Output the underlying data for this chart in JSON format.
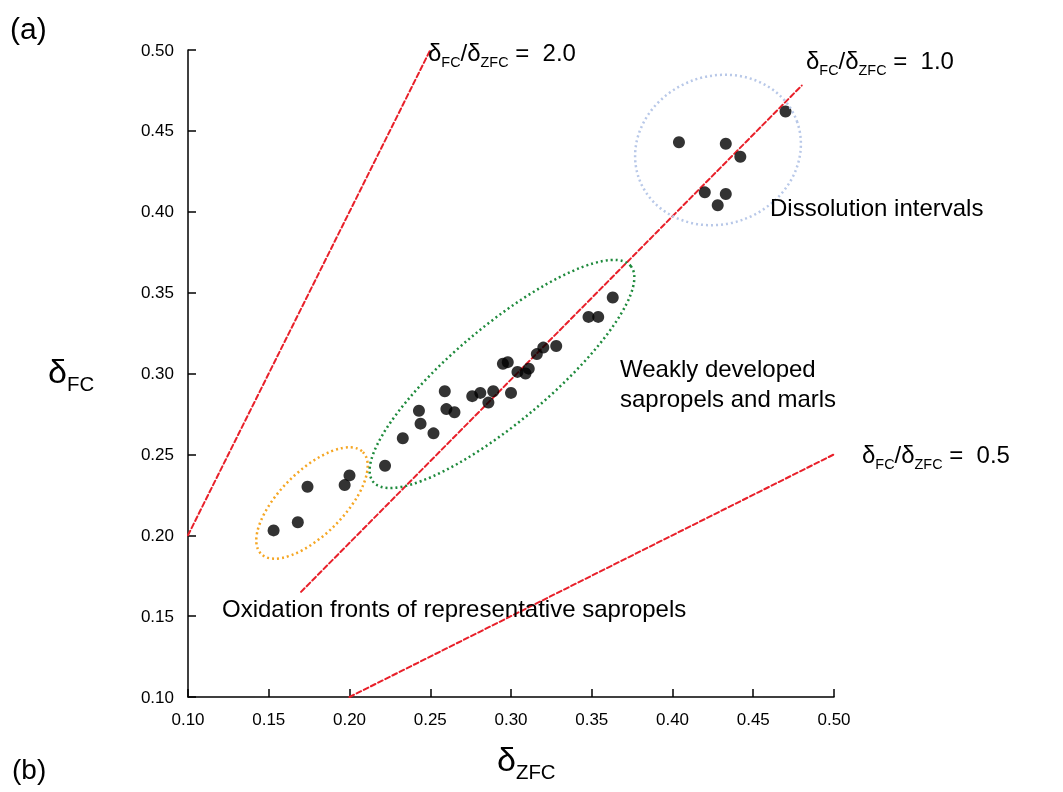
{
  "chart_data": {
    "type": "scatter",
    "xlabel": "δ$_{ZFC}$",
    "ylabel": "δ$_{FC}$",
    "xlim": [
      0.1,
      0.5
    ],
    "xticks": [
      {
        "value": 0.1,
        "label": "0.10"
      },
      {
        "value": 0.15,
        "label": "0.15"
      },
      {
        "value": 0.2,
        "label": "0.20"
      },
      {
        "value": 0.25,
        "label": "0.25"
      },
      {
        "value": 0.3,
        "label": "0.30"
      },
      {
        "value": 0.35,
        "label": "0.35"
      },
      {
        "value": 0.4,
        "label": "0.40"
      },
      {
        "value": 0.45,
        "label": "0.45"
      },
      {
        "value": 0.5,
        "label": "0.50"
      }
    ],
    "ylim": [
      0.1,
      0.5
    ],
    "yticks": [
      {
        "value": 0.1,
        "label": "0.10"
      },
      {
        "value": 0.15,
        "label": "0.15"
      },
      {
        "value": 0.2,
        "label": "0.20"
      },
      {
        "value": 0.25,
        "label": "0.25"
      },
      {
        "value": 0.3,
        "label": "0.30"
      },
      {
        "value": 0.35,
        "label": "0.35"
      },
      {
        "value": 0.4,
        "label": "0.40"
      },
      {
        "value": 0.45,
        "label": "0.45"
      },
      {
        "value": 0.5,
        "label": "0.50"
      }
    ],
    "grid": false,
    "marker": "circle",
    "series": [
      {
        "type": "scatter",
        "color": "#000000",
        "x": [
          0.153,
          0.168,
          0.174,
          0.197,
          0.2,
          0.222,
          0.233,
          0.244,
          0.243,
          0.252,
          0.259,
          0.26,
          0.265,
          0.276,
          0.281,
          0.285,
          0.286,
          0.289,
          0.3,
          0.295,
          0.298,
          0.304,
          0.309,
          0.311,
          0.316,
          0.32,
          0.328,
          0.348,
          0.354,
          0.363,
          0.404,
          0.433,
          0.442,
          0.42,
          0.433,
          0.428,
          0.47
        ],
        "values": [
          0.203,
          0.208,
          0.23,
          0.231,
          0.237,
          0.243,
          0.26,
          0.269,
          0.277,
          0.263,
          0.289,
          0.278,
          0.276,
          0.286,
          0.288,
          null,
          0.282,
          0.289,
          0.288,
          0.306,
          0.307,
          0.301,
          0.3,
          0.303,
          0.312,
          0.316,
          0.317,
          0.335,
          0.335,
          0.347,
          0.443,
          0.442,
          0.434,
          0.412,
          0.411,
          0.404,
          0.462
        ]
      },
      {
        "type": "line",
        "color": "#e8202a",
        "line_style": "dashed",
        "marker": "none",
        "x": [
          0.1,
          0.25
        ],
        "values": [
          0.2,
          0.5
        ]
      },
      {
        "type": "line",
        "color": "#e8202a",
        "line_style": "dashed",
        "marker": "none",
        "x": [
          0.17,
          0.48
        ],
        "values": [
          0.165,
          0.478
        ]
      },
      {
        "type": "line",
        "color": "#e8202a",
        "line_style": "dashed",
        "marker": "none",
        "x": [
          0.2,
          0.5
        ],
        "values": [
          0.1,
          0.25
        ]
      }
    ],
    "annotations": [
      "(a)",
      "δ$_{FC}$/δ$_{ZFC}$ =  2.0",
      "δ$_{FC}$/δ$_{ZFC}$ =  1.0",
      "δ$_{FC}$/δ$_{ZFC}$ =  0.5",
      "Dissolution intervals",
      "Weakly developed sapropels and marls",
      "Oxidation fronts of representative sapropels",
      "(b)"
    ]
  }
}
